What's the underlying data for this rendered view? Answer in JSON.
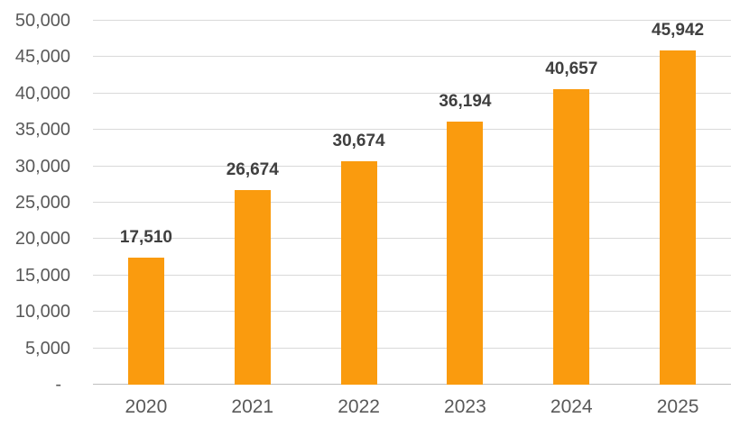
{
  "chart_data": {
    "type": "bar",
    "title": "",
    "subtitle": "",
    "xlabel": "",
    "ylabel": "",
    "categories": [
      "2020",
      "2021",
      "2022",
      "2023",
      "2024",
      "2025"
    ],
    "values": [
      17510,
      26674,
      30674,
      36194,
      40657,
      45942
    ],
    "value_labels": [
      "17,510",
      "26,674",
      "30,674",
      "36,194",
      "40,657",
      "45,942"
    ],
    "ylim": [
      0,
      50000
    ],
    "y_tick_step": 5000,
    "y_ticks": [
      0,
      5000,
      10000,
      15000,
      20000,
      25000,
      30000,
      35000,
      40000,
      45000,
      50000
    ],
    "y_tick_labels": [
      "-",
      "5,000",
      "10,000",
      "15,000",
      "20,000",
      "25,000",
      "30,000",
      "35,000",
      "40,000",
      "45,000",
      "50,000"
    ],
    "grid": "horizontal",
    "legend": "none",
    "colors": {
      "bar": "#FA9B0E",
      "gridline": "#D9D9D9",
      "axis_line": "#BFBFBF",
      "tick_label": "#595959",
      "category_label": "#595959",
      "value_label": "#3F3F3F",
      "background": "#FFFFFF"
    }
  }
}
